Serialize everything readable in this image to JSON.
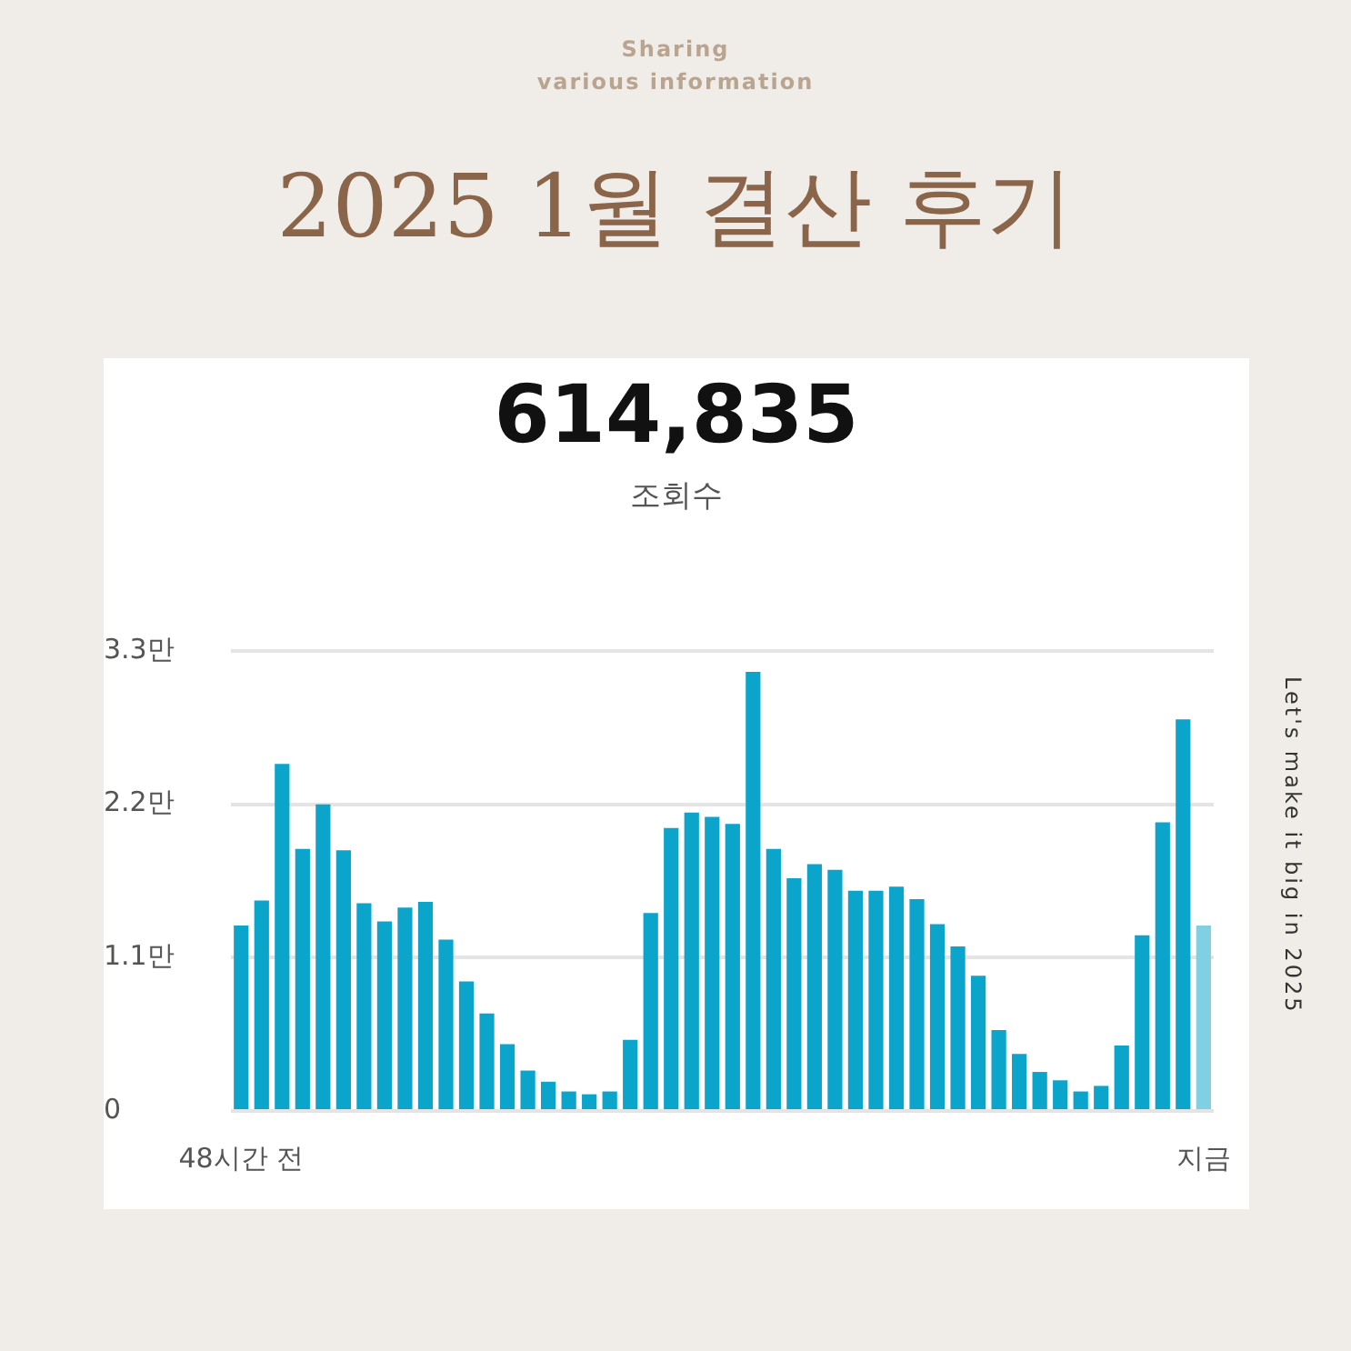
{
  "chart_data": {
    "type": "bar",
    "title": "2025 1월 결산 후기",
    "subtitle": "Sharing\nvarious information",
    "annotations": [
      "614,835",
      "조회수",
      "Let's make it big in 2025"
    ],
    "categories": [
      "48시간 전",
      null,
      null,
      null,
      null,
      null,
      null,
      null,
      null,
      null,
      null,
      null,
      null,
      null,
      null,
      null,
      null,
      null,
      null,
      null,
      null,
      null,
      null,
      null,
      null,
      null,
      null,
      null,
      null,
      null,
      null,
      null,
      null,
      null,
      null,
      null,
      null,
      null,
      null,
      null,
      null,
      null,
      null,
      null,
      null,
      null,
      null,
      "지금"
    ],
    "values": [
      1.33,
      1.51,
      2.49,
      1.88,
      2.2,
      1.87,
      1.49,
      1.36,
      1.46,
      1.5,
      1.23,
      0.93,
      0.7,
      0.48,
      0.29,
      0.21,
      0.14,
      0.12,
      0.14,
      0.51,
      1.42,
      2.03,
      2.14,
      2.11,
      2.06,
      3.15,
      1.88,
      1.67,
      1.77,
      1.73,
      1.58,
      1.58,
      1.61,
      1.52,
      1.34,
      1.18,
      0.97,
      0.58,
      0.41,
      0.28,
      0.22,
      0.14,
      0.18,
      0.47,
      1.26,
      2.07,
      2.81,
      1.33
    ],
    "colors": [
      "#0ba5cc",
      "#0ba5cc",
      "#0ba5cc",
      "#0ba5cc",
      "#0ba5cc",
      "#0ba5cc",
      "#0ba5cc",
      "#0ba5cc",
      "#0ba5cc",
      "#0ba5cc",
      "#0ba5cc",
      "#0ba5cc",
      "#0ba5cc",
      "#0ba5cc",
      "#0ba5cc",
      "#0ba5cc",
      "#0ba5cc",
      "#0ba5cc",
      "#0ba5cc",
      "#0ba5cc",
      "#0ba5cc",
      "#0ba5cc",
      "#0ba5cc",
      "#0ba5cc",
      "#0ba5cc",
      "#0ba5cc",
      "#0ba5cc",
      "#0ba5cc",
      "#0ba5cc",
      "#0ba5cc",
      "#0ba5cc",
      "#0ba5cc",
      "#0ba5cc",
      "#0ba5cc",
      "#0ba5cc",
      "#0ba5cc",
      "#0ba5cc",
      "#0ba5cc",
      "#0ba5cc",
      "#0ba5cc",
      "#0ba5cc",
      "#0ba5cc",
      "#0ba5cc",
      "#0ba5cc",
      "#0ba5cc",
      "#0ba5cc",
      "#0ba5cc",
      "#80cfe2"
    ],
    "ylim": [
      0,
      3.3
    ],
    "yticks": [
      0,
      {
        "value": 1.1,
        "label": "1.1만"
      },
      {
        "value": 2.2,
        "label": "2.2만"
      },
      {
        "value": 3.3,
        "label": "3.3만"
      }
    ],
    "grid": "y"
  }
}
